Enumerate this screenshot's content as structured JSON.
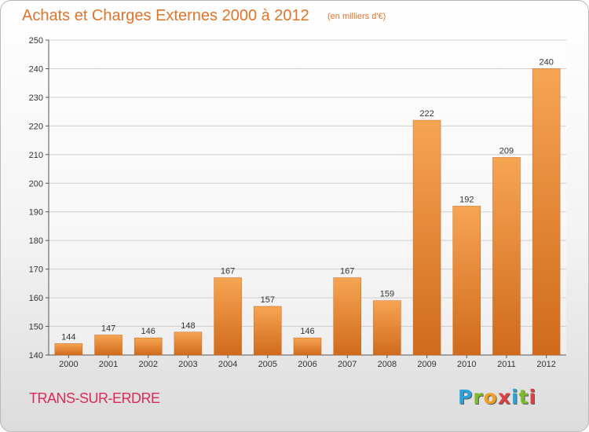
{
  "header": {
    "title": "Achats et Charges Externes 2000 à 2012",
    "subtitle": "(en milliers d'€)"
  },
  "commune": "TRANS-SUR-ERDRE",
  "logo": {
    "letters": [
      "P",
      "r",
      "o",
      "x",
      "i",
      "t",
      "i"
    ],
    "colors": [
      "#29a3d9",
      "#7cbb2a",
      "#f0a020",
      "#e04040",
      "#29a3d9",
      "#7cbb2a",
      "#e04040"
    ]
  },
  "colors": {
    "bar_light": "#f6a553",
    "bar_dark": "#d06a1c",
    "title": "#e0732a",
    "grid": "#cfcfcf"
  },
  "chart_data": {
    "type": "bar",
    "categories": [
      "2000",
      "2001",
      "2002",
      "2003",
      "2004",
      "2005",
      "2006",
      "2007",
      "2008",
      "2009",
      "2010",
      "2011",
      "2012"
    ],
    "values": [
      144,
      147,
      146,
      148,
      167,
      157,
      146,
      167,
      159,
      222,
      192,
      209,
      240
    ],
    "title": "Achats et Charges Externes 2000 à 2012",
    "ylim": [
      140,
      250
    ],
    "yticks": [
      140,
      150,
      160,
      170,
      180,
      190,
      200,
      210,
      220,
      230,
      240,
      250
    ],
    "grid": true
  }
}
